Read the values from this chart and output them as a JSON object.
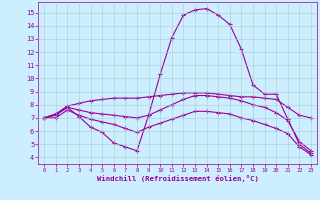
{
  "xlabel": "Windchill (Refroidissement éolien,°C)",
  "bg_color": "#cceeff",
  "grid_color": "#aacccc",
  "line_color": "#990099",
  "ylim": [
    3.5,
    15.8
  ],
  "xlim": [
    -0.5,
    23.5
  ],
  "yticks": [
    4,
    5,
    6,
    7,
    8,
    9,
    10,
    11,
    12,
    13,
    14,
    15
  ],
  "xticks": [
    0,
    1,
    2,
    3,
    4,
    5,
    6,
    7,
    8,
    9,
    10,
    11,
    12,
    13,
    14,
    15,
    16,
    17,
    18,
    19,
    20,
    21,
    22,
    23
  ],
  "curves": [
    {
      "x": [
        0,
        1,
        2,
        3,
        4,
        5,
        6,
        7,
        8,
        9,
        10,
        11,
        12,
        13,
        14,
        15,
        16,
        17,
        18,
        19,
        20,
        21,
        22,
        23
      ],
      "y": [
        7.0,
        7.3,
        7.8,
        7.1,
        6.3,
        5.9,
        5.1,
        4.8,
        4.5,
        7.2,
        10.3,
        13.1,
        14.8,
        15.2,
        15.3,
        14.8,
        14.1,
        12.2,
        9.5,
        8.8,
        8.8,
        6.9,
        5.0,
        4.3
      ]
    },
    {
      "x": [
        0,
        1,
        2,
        3,
        4,
        5,
        6,
        7,
        8,
        9,
        10,
        11,
        12,
        13,
        14,
        15,
        16,
        17,
        18,
        19,
        20,
        21,
        22,
        23
      ],
      "y": [
        7.0,
        7.3,
        7.9,
        8.1,
        8.3,
        8.4,
        8.5,
        8.5,
        8.5,
        8.6,
        8.7,
        8.8,
        8.9,
        8.9,
        8.9,
        8.8,
        8.7,
        8.6,
        8.6,
        8.5,
        8.4,
        7.8,
        7.2,
        7.0
      ]
    },
    {
      "x": [
        0,
        1,
        2,
        3,
        4,
        5,
        6,
        7,
        8,
        9,
        10,
        11,
        12,
        13,
        14,
        15,
        16,
        17,
        18,
        19,
        20,
        21,
        22,
        23
      ],
      "y": [
        7.0,
        7.2,
        7.8,
        7.6,
        7.4,
        7.3,
        7.2,
        7.1,
        7.0,
        7.2,
        7.6,
        8.0,
        8.4,
        8.7,
        8.7,
        8.6,
        8.5,
        8.3,
        8.0,
        7.8,
        7.4,
        6.8,
        5.2,
        4.5
      ]
    },
    {
      "x": [
        0,
        1,
        2,
        3,
        4,
        5,
        6,
        7,
        8,
        9,
        10,
        11,
        12,
        13,
        14,
        15,
        16,
        17,
        18,
        19,
        20,
        21,
        22,
        23
      ],
      "y": [
        7.0,
        7.0,
        7.6,
        7.2,
        6.9,
        6.7,
        6.5,
        6.2,
        5.9,
        6.3,
        6.6,
        6.9,
        7.2,
        7.5,
        7.5,
        7.4,
        7.3,
        7.0,
        6.8,
        6.5,
        6.2,
        5.8,
        4.8,
        4.2
      ]
    }
  ]
}
